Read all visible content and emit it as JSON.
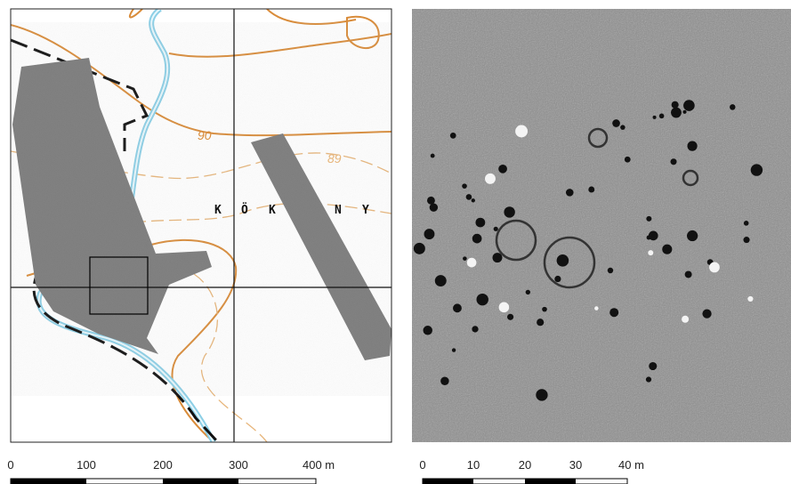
{
  "left_map": {
    "contour_labels": [
      "90",
      "89"
    ],
    "place_name": [
      "K",
      "Ö",
      "K",
      "N",
      "Y"
    ],
    "scale": [
      "0",
      "100",
      "200",
      "300",
      "400 m"
    ]
  },
  "right_map": {
    "scale": [
      "0",
      "10",
      "20",
      "30",
      "40 m"
    ]
  }
}
